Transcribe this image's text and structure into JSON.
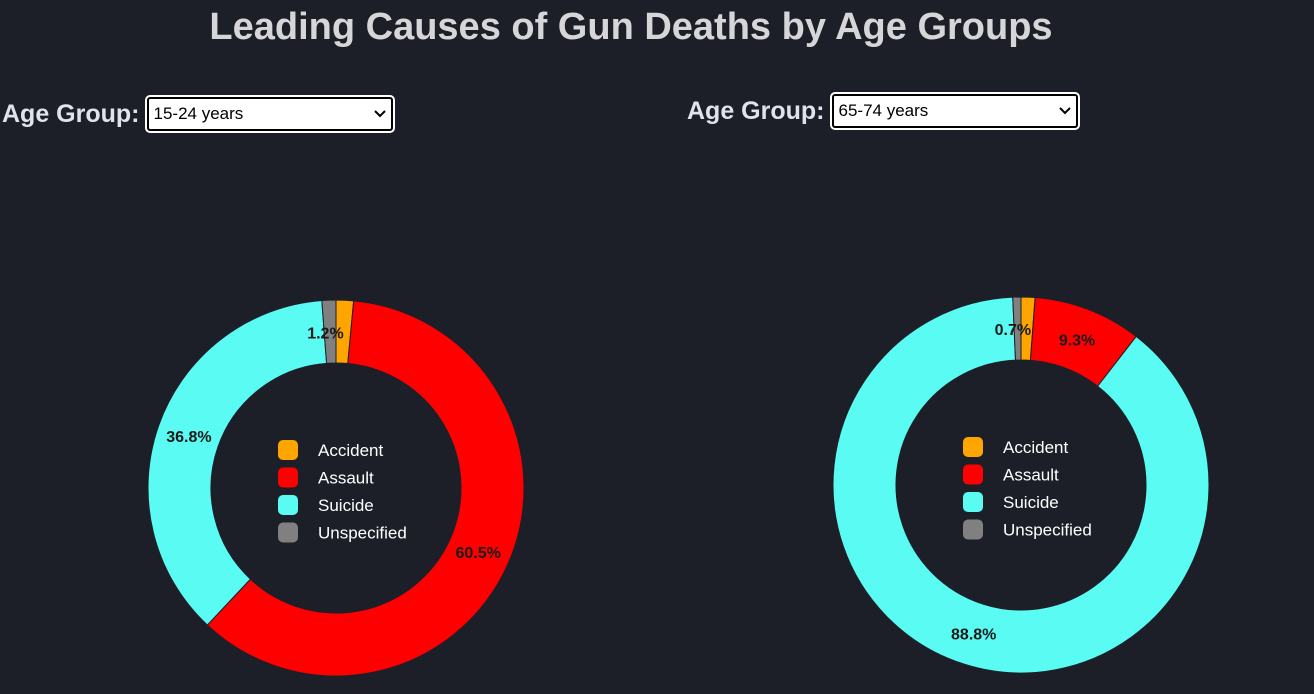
{
  "page": {
    "title": "Leading Causes of Gun Deaths by Age Groups"
  },
  "colors": {
    "background": "#1c1f28",
    "Accident": "#ffa500",
    "Assault": "#ff0000",
    "Suicide": "#59fbf2",
    "Unspecified": "#808080"
  },
  "chart_data": [
    {
      "type": "pie",
      "variant": "donut",
      "selector_label": "Age Group:",
      "selected_age_group": "15-24 years",
      "categories": [
        "Accident",
        "Assault",
        "Suicide",
        "Unspecified"
      ],
      "values": [
        1.5,
        60.5,
        36.8,
        1.2
      ],
      "visible_labels": [
        "",
        "60.5%",
        "36.8%",
        "1.2%"
      ],
      "legend": [
        "Accident",
        "Assault",
        "Suicide",
        "Unspecified"
      ],
      "legend_placement": "center"
    },
    {
      "type": "pie",
      "variant": "donut",
      "selector_label": "Age Group:",
      "selected_age_group": "65-74 years",
      "categories": [
        "Accident",
        "Assault",
        "Suicide",
        "Unspecified"
      ],
      "values": [
        1.2,
        9.3,
        88.8,
        0.7
      ],
      "visible_labels": [
        "",
        "9.3%",
        "88.8%",
        "0.7%"
      ],
      "legend": [
        "Accident",
        "Assault",
        "Suicide",
        "Unspecified"
      ],
      "legend_placement": "center"
    }
  ]
}
